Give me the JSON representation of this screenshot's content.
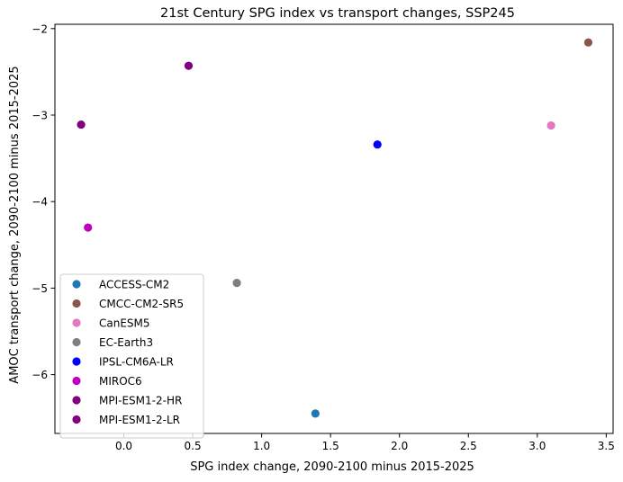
{
  "chart_data": {
    "type": "scatter",
    "title": "21st Century SPG index vs transport changes, SSP245",
    "xlabel": "SPG index change, 2090-2100 minus 2015-2025",
    "ylabel": "AMOC transport change, 2090-2100 minus 2015-2025",
    "xlim": [
      -0.5,
      3.55
    ],
    "ylim": [
      -6.68,
      -1.95
    ],
    "xticks": [
      0.0,
      0.5,
      1.0,
      1.5,
      2.0,
      2.5,
      3.0,
      3.5
    ],
    "xtick_labels": [
      "0.0",
      "0.5",
      "1.0",
      "1.5",
      "2.0",
      "2.5",
      "3.0",
      "3.5"
    ],
    "yticks": [
      -6,
      -5,
      -4,
      -3,
      -2
    ],
    "ytick_labels": [
      "−6",
      "−5",
      "−4",
      "−3",
      "−2"
    ],
    "grid": false,
    "legend_position": "lower-left",
    "series": [
      {
        "name": "ACCESS-CM2",
        "color": "#1f77b4",
        "x": [
          1.39
        ],
        "y": [
          -6.45
        ]
      },
      {
        "name": "CMCC-CM2-SR5",
        "color": "#8c564b",
        "x": [
          3.37
        ],
        "y": [
          -2.16
        ]
      },
      {
        "name": "CanESM5",
        "color": "#e377c2",
        "x": [
          3.1
        ],
        "y": [
          -3.12
        ]
      },
      {
        "name": "EC-Earth3",
        "color": "#7f7f7f",
        "x": [
          0.82
        ],
        "y": [
          -4.94
        ]
      },
      {
        "name": "IPSL-CM6A-LR",
        "color": "#0000ff",
        "x": [
          1.84
        ],
        "y": [
          -3.34
        ]
      },
      {
        "name": "MIROC6",
        "color": "#bf00bf",
        "x": [
          -0.26
        ],
        "y": [
          -4.3
        ]
      },
      {
        "name": "MPI-ESM1-2-HR",
        "color": "#800080",
        "x": [
          -0.31
        ],
        "y": [
          -3.11
        ]
      },
      {
        "name": "MPI-ESM1-2-LR",
        "color": "#800080",
        "x": [
          0.47
        ],
        "y": [
          -2.43
        ]
      }
    ]
  }
}
